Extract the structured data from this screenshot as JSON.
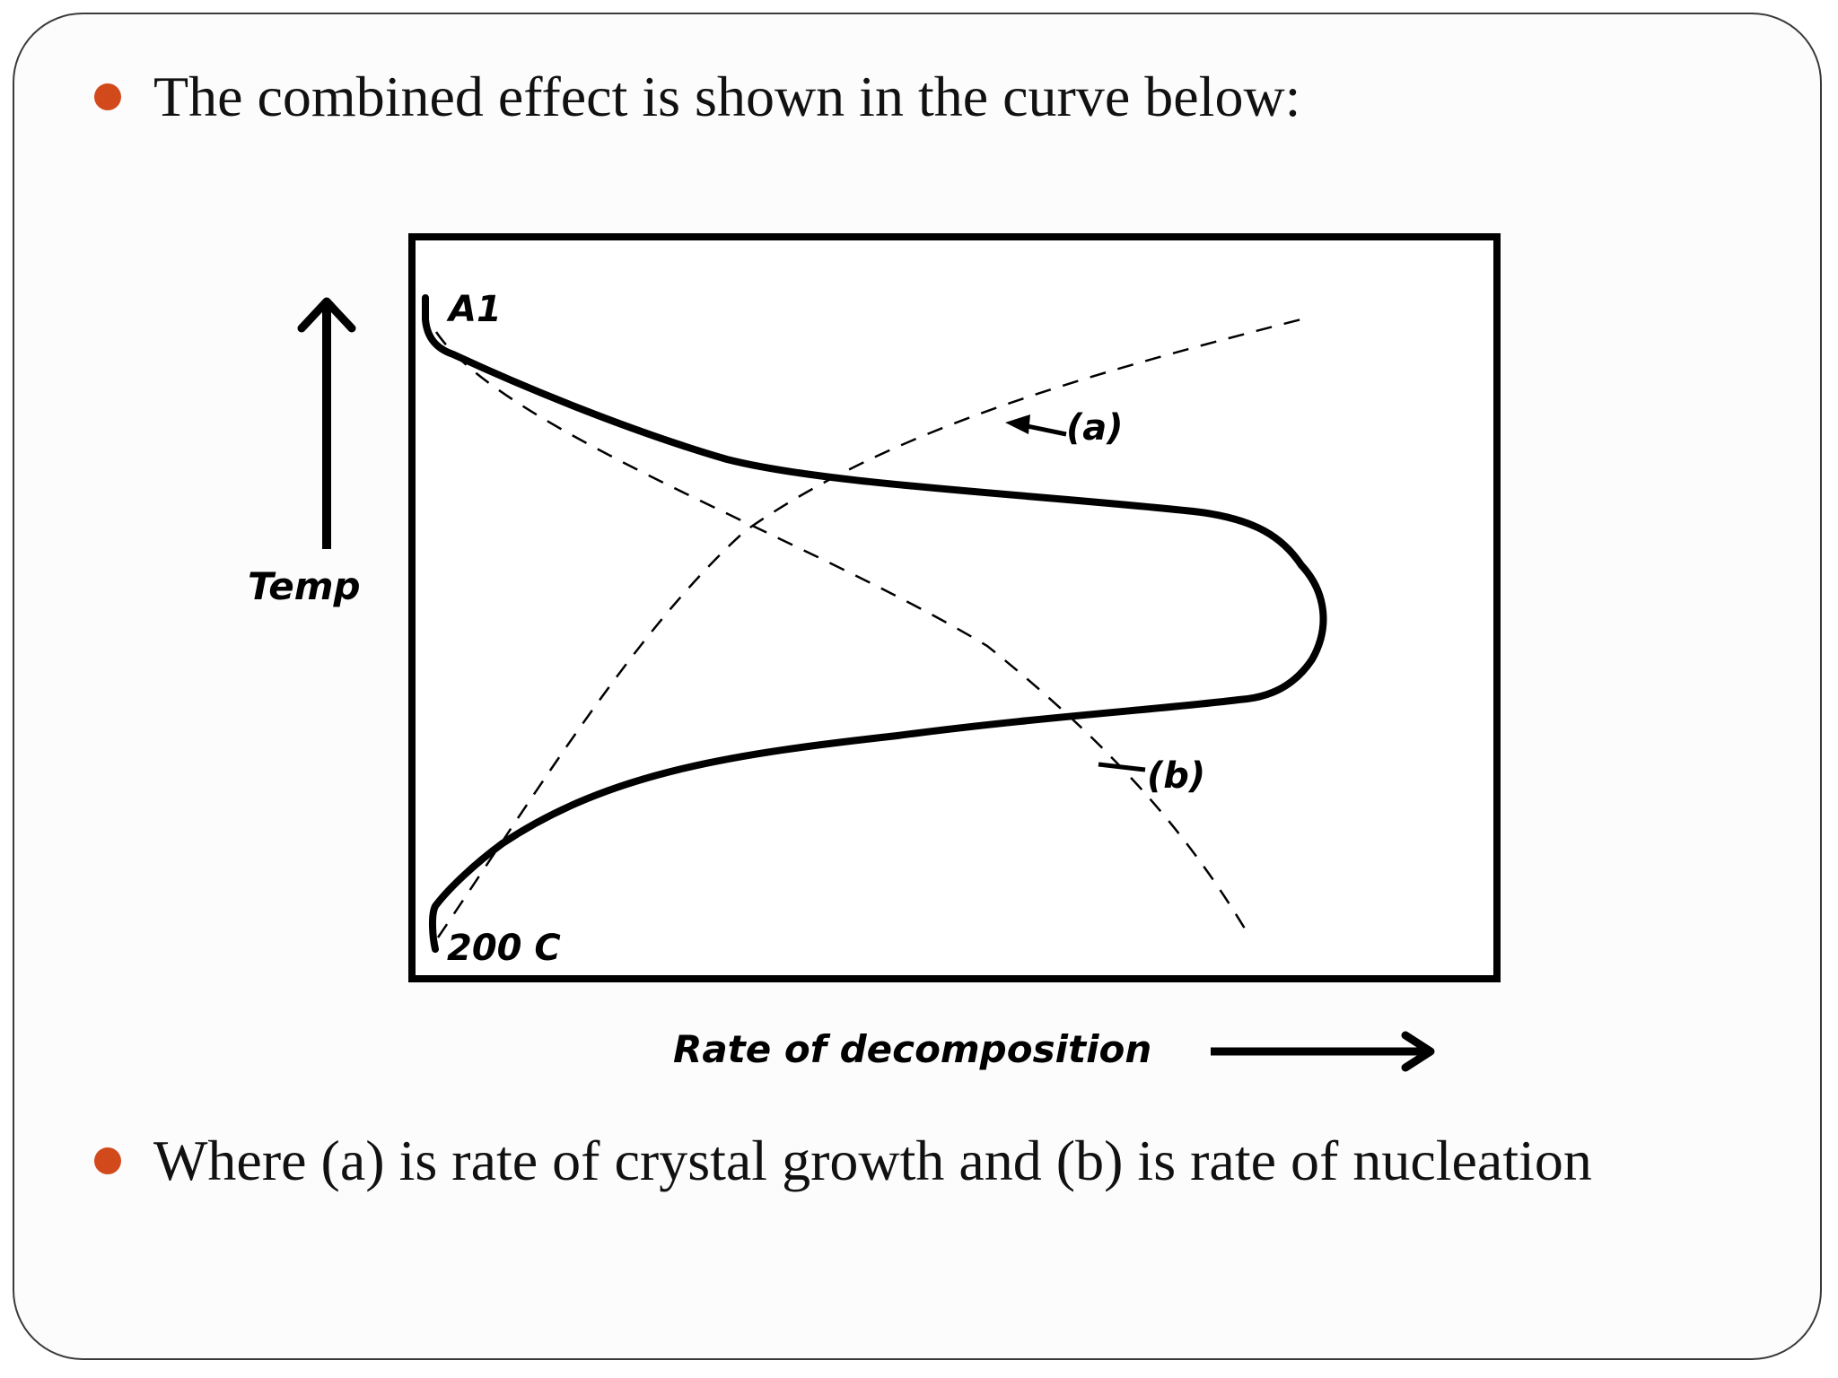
{
  "bullets": [
    {
      "text": "The combined effect is shown in the curve below:"
    },
    {
      "text": "Where (a) is rate of crystal growth and (b) is rate of nucleation"
    }
  ],
  "diagram": {
    "y_axis_label": "Temp",
    "x_axis_label": "Rate of decomposition",
    "top_label": "A1",
    "bottom_label": "200 C",
    "curve_a_label": "(a)",
    "curve_b_label": "(b)"
  },
  "colors": {
    "bullet": "#d24a1c",
    "text": "#111111",
    "line": "#000000"
  }
}
